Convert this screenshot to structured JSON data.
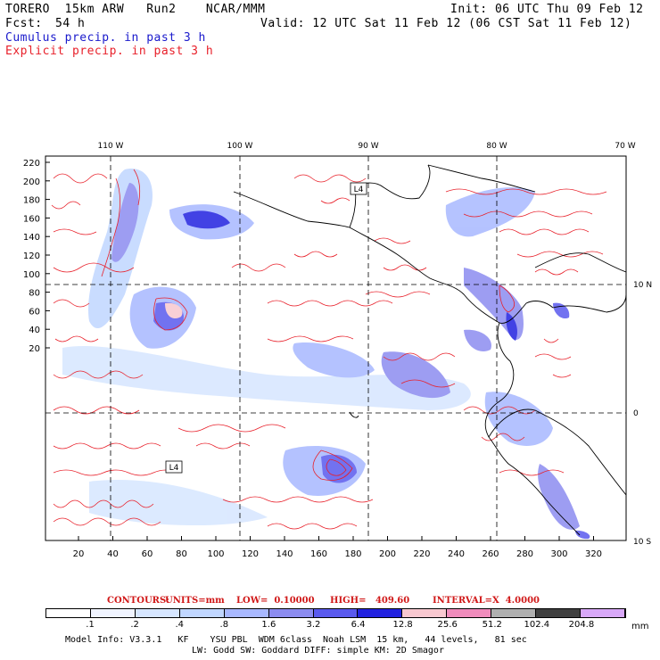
{
  "header": {
    "model": "TORERO  15km ARW   Run2    NCAR/MMM",
    "init": "Init: 06 UTC Thu 09 Feb 12",
    "fcst_label": "Fcst:",
    "fcst_hours": "54 h",
    "valid": "Valid: 12 UTC Sat 11 Feb 12 (06 CST Sat 11 Feb 12)",
    "field1": "Cumulus precip. in past 3 h",
    "field2": "Explicit precip. in past 3 h"
  },
  "colors": {
    "cumulus_text": "#1a1acc",
    "explicit_text": "#e8202a",
    "contour": "#e8202a",
    "coastline": "#000000"
  },
  "map": {
    "lon_labels": [
      "110 W",
      "100 W",
      "90 W",
      "80 W",
      "70 W"
    ],
    "lat_labels": [
      "10 N",
      "0",
      "10 S"
    ],
    "y_ticks": [
      "220",
      "200",
      "180",
      "160",
      "140",
      "120",
      "100",
      "80",
      "60",
      "40",
      "20"
    ],
    "x_ticks": [
      "20",
      "40",
      "60",
      "80",
      "100",
      "120",
      "140",
      "160",
      "180",
      "200",
      "220",
      "240",
      "260",
      "280",
      "300",
      "320"
    ],
    "low_markers": [
      "L4",
      "L4"
    ]
  },
  "contours_line": {
    "label": "CONTOURS:",
    "units": "UNITS=mm",
    "low": "LOW=  0.10000",
    "high": "HIGH=   409.60",
    "interval": "INTERVAL=X  4.0000"
  },
  "legend": {
    "labels": [
      ".1",
      ".2",
      ".4",
      ".8",
      "1.6",
      "3.2",
      "6.4",
      "12.8",
      "25.6",
      "51.2",
      "102.4",
      "204.8"
    ],
    "unit": "mm",
    "colors": [
      "#ffffff",
      "#f0f4ff",
      "#d6e6ff",
      "#c0d6ff",
      "#a8b8ff",
      "#8c8cf0",
      "#5a5aee",
      "#2222e0",
      "#f8c8d0",
      "#f08cbc",
      "#b0b0b0",
      "#404040",
      "#d8a8f8"
    ]
  },
  "footer": {
    "line1": "Model Info: V3.3.1   KF    YSU PBL  WDM 6class  Noah LSM  15 km,   44 levels,   81 sec",
    "line2": "LW: Godd SW: Goddard DIFF: simple KM: 2D Smagor"
  }
}
